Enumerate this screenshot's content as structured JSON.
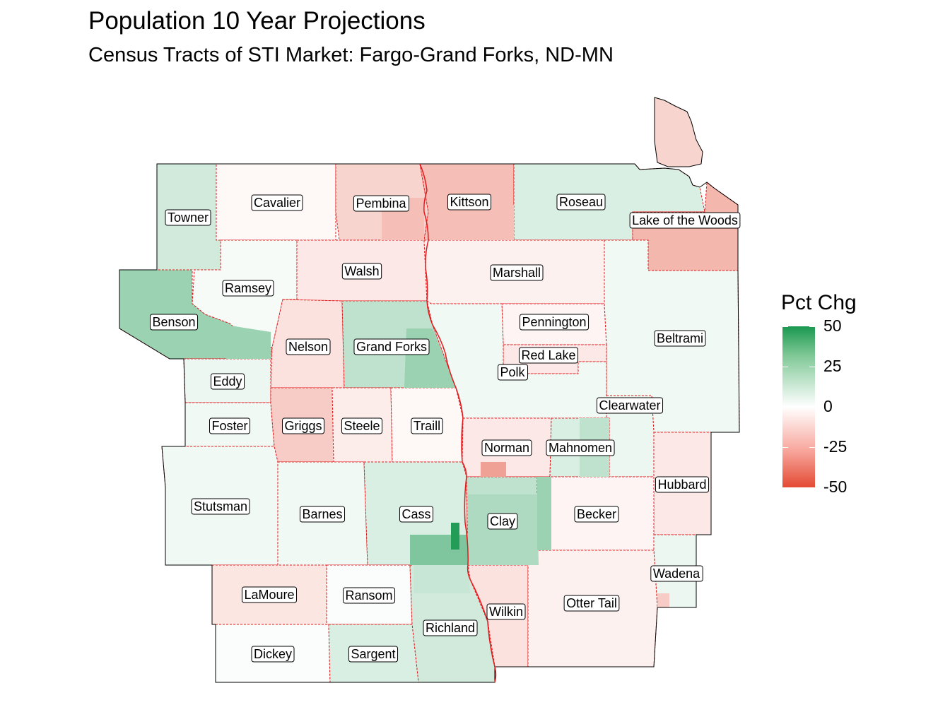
{
  "title": "Population 10 Year Projections",
  "subtitle": "Census Tracts of STI Market: Fargo-Grand Forks, ND-MN",
  "legend": {
    "title": "Pct Chg",
    "ticks": [
      "50",
      "25",
      "0",
      "-25",
      "-50"
    ],
    "tick_values": [
      50,
      25,
      0,
      -25,
      -50
    ],
    "color_high": "#1a9850",
    "color_mid": "#ffffff",
    "color_low": "#e34a33"
  },
  "colors": {
    "county_border": "#000000",
    "state_line": "#e31a1c",
    "dashed_border": "#e31a1c"
  },
  "counties": [
    {
      "name": "Towner",
      "pct": 10
    },
    {
      "name": "Cavalier",
      "pct": -2
    },
    {
      "name": "Pembina",
      "pct": -12
    },
    {
      "name": "Kittson",
      "pct": -18
    },
    {
      "name": "Roseau",
      "pct": 8
    },
    {
      "name": "Lake of the Woods",
      "pct": -20
    },
    {
      "name": "Ramsey",
      "pct": 2
    },
    {
      "name": "Walsh",
      "pct": -6
    },
    {
      "name": "Marshall",
      "pct": -4
    },
    {
      "name": "Benson",
      "pct": 22
    },
    {
      "name": "Pennington",
      "pct": -3
    },
    {
      "name": "Beltrami",
      "pct": 3
    },
    {
      "name": "Nelson",
      "pct": -8
    },
    {
      "name": "Grand Forks",
      "pct": 14
    },
    {
      "name": "Red Lake",
      "pct": -6
    },
    {
      "name": "Polk",
      "pct": 3
    },
    {
      "name": "Eddy",
      "pct": 4
    },
    {
      "name": "Clearwater",
      "pct": 4
    },
    {
      "name": "Foster",
      "pct": 3
    },
    {
      "name": "Griggs",
      "pct": -14
    },
    {
      "name": "Steele",
      "pct": -5
    },
    {
      "name": "Traill",
      "pct": -2
    },
    {
      "name": "Norman",
      "pct": -6
    },
    {
      "name": "Mahnomen",
      "pct": 8
    },
    {
      "name": "Hubbard",
      "pct": -6
    },
    {
      "name": "Stutsman",
      "pct": 3
    },
    {
      "name": "Barnes",
      "pct": 3
    },
    {
      "name": "Cass",
      "pct": 8
    },
    {
      "name": "Clay",
      "pct": 14
    },
    {
      "name": "Becker",
      "pct": -3
    },
    {
      "name": "Wadena",
      "pct": 4
    },
    {
      "name": "LaMoure",
      "pct": -7
    },
    {
      "name": "Ransom",
      "pct": 1
    },
    {
      "name": "Wilkin",
      "pct": -8
    },
    {
      "name": "Otter Tail",
      "pct": -4
    },
    {
      "name": "Richland",
      "pct": 10
    },
    {
      "name": "Dickey",
      "pct": 1
    },
    {
      "name": "Sargent",
      "pct": 8
    }
  ]
}
